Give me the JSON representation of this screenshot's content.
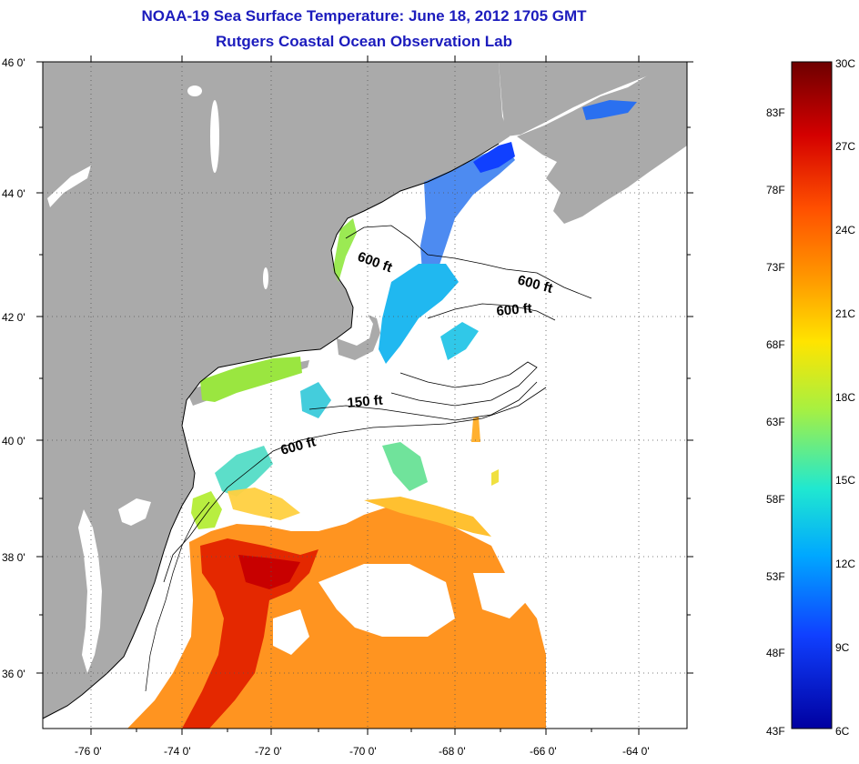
{
  "title": {
    "line1": "NOAA-19 Sea Surface Temperature:  June 18, 2012 1705 GMT",
    "line2": "Rutgers Coastal Ocean Observation Lab"
  },
  "axes": {
    "lat_labels": [
      "46 0'",
      "44 0'",
      "42 0'",
      "40 0'",
      "38 0'",
      "36 0'"
    ],
    "lon_labels": [
      "-76 0'",
      "-74 0'",
      "-72 0'",
      "-70 0'",
      "-68 0'",
      "-66 0'",
      "-64 0'"
    ]
  },
  "contours": {
    "labels": [
      "600 ft",
      "600 ft",
      "600 ft",
      "150 ft",
      "600 ft"
    ]
  },
  "colorbar": {
    "celsius_labels": [
      "30C",
      "27C",
      "24C",
      "21C",
      "18C",
      "15C",
      "12C",
      "9C",
      "6C"
    ],
    "fahrenheit_labels": [
      "83F",
      "78F",
      "73F",
      "68F",
      "63F",
      "58F",
      "53F",
      "48F",
      "43F"
    ],
    "colors": [
      "#7a0000",
      "#d40000",
      "#ff5a00",
      "#ffa000",
      "#ffe000",
      "#a0f040",
      "#20e8c8",
      "#00a0ff",
      "#1040ff",
      "#0000a0"
    ]
  },
  "colors": {
    "land": "#aaaaaa",
    "grid": "#555555",
    "title": "#1c1cbd"
  }
}
